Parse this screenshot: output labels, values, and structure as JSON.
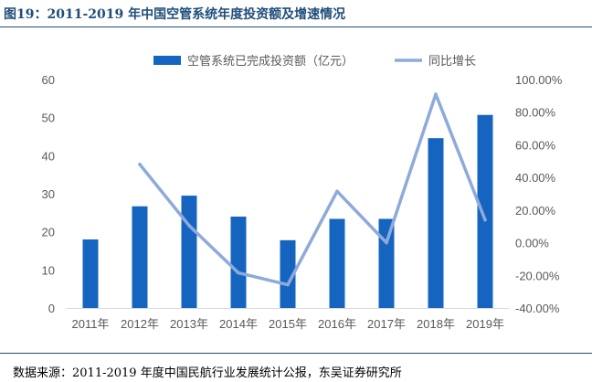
{
  "figure_title": "图19：2011-2019 年中国空管系统年度投资额及增速情况",
  "source_note": "数据来源：2011-2019 年度中国民航行业发展统计公报，东吴证券研究所",
  "colors": {
    "bar": "#1565c0",
    "line": "#8eaadb",
    "title": "#1f4e79",
    "text": "#595959"
  },
  "chart_data": {
    "type": "bar",
    "title": "2011-2019 年中国空管系统年度投资额及增速情况",
    "categories": [
      "2011年",
      "2012年",
      "2013年",
      "2014年",
      "2015年",
      "2016年",
      "2017年",
      "2018年",
      "2019年"
    ],
    "series": [
      {
        "name": "空管系统已完成投资额（亿元）",
        "type": "bar",
        "axis": "left",
        "values": [
          18,
          26.7,
          29.5,
          24,
          17.8,
          23.4,
          23.4,
          44.6,
          50.7
        ]
      },
      {
        "name": "同比增长",
        "type": "line",
        "axis": "right",
        "values": [
          null,
          0.48,
          0.105,
          -0.185,
          -0.258,
          0.315,
          0.0,
          0.91,
          0.14
        ]
      }
    ],
    "y_left": {
      "min": 0,
      "max": 60,
      "ticks": [
        "0",
        "10",
        "20",
        "30",
        "40",
        "50",
        "60"
      ]
    },
    "y_right": {
      "min": -0.4,
      "max": 1.0,
      "ticks": [
        "-40.00%",
        "-20.00%",
        "0.00%",
        "20.00%",
        "40.00%",
        "60.00%",
        "80.00%",
        "100.00%"
      ]
    },
    "legend_position": "top",
    "grid": false
  }
}
